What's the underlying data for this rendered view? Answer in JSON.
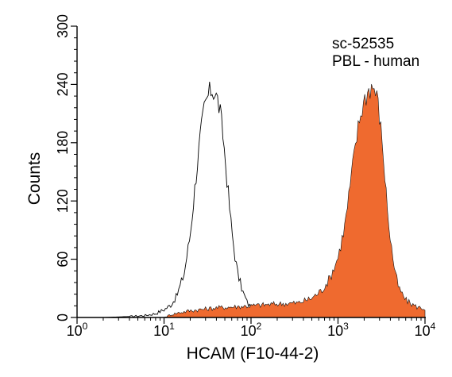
{
  "chart_data": {
    "type": "area",
    "xlabel": "HCAM (F10-44-2)",
    "ylabel": "Counts",
    "x_scale": "log",
    "xlim": [
      1,
      10000
    ],
    "ylim": [
      0,
      300
    ],
    "x_ticks": [
      {
        "base": "10",
        "exp": "0",
        "value": 1
      },
      {
        "base": "10",
        "exp": "1",
        "value": 10
      },
      {
        "base": "10",
        "exp": "2",
        "value": 100
      },
      {
        "base": "10",
        "exp": "3",
        "value": 1000
      },
      {
        "base": "10",
        "exp": "4",
        "value": 10000
      }
    ],
    "y_ticks": [
      "0",
      "60",
      "120",
      "180",
      "240",
      "300"
    ],
    "annotations": [
      "sc-52535",
      "PBL - human"
    ],
    "series": [
      {
        "style": "outline",
        "color": "#000000",
        "x": [
          1,
          2,
          4,
          6,
          8,
          10,
          12,
          14,
          17,
          20,
          23,
          26,
          29,
          32,
          35,
          38,
          41,
          44,
          48,
          52,
          56,
          60,
          65,
          70,
          80,
          90,
          100,
          120,
          150,
          200,
          300,
          500,
          800,
          1200,
          2000,
          4000,
          10000
        ],
        "y": [
          0,
          0,
          1,
          2,
          4,
          8,
          13,
          22,
          45,
          85,
          140,
          185,
          215,
          228,
          235,
          232,
          225,
          212,
          185,
          150,
          118,
          90,
          65,
          46,
          27,
          16,
          10,
          7,
          5,
          4,
          3,
          3,
          3,
          3,
          3,
          2,
          0
        ]
      },
      {
        "style": "filled",
        "color": "#ef6a2f",
        "x": [
          1,
          10,
          12,
          15,
          20,
          40,
          100,
          200,
          350,
          500,
          650,
          800,
          1000,
          1200,
          1400,
          1600,
          1800,
          2000,
          2200,
          2400,
          2600,
          2800,
          3000,
          3300,
          3600,
          4000,
          4500,
          5000,
          6000,
          7000,
          8000,
          10000
        ],
        "y": [
          0,
          0,
          3,
          5,
          7,
          10,
          12,
          14,
          15,
          20,
          28,
          40,
          62,
          95,
          140,
          180,
          208,
          224,
          233,
          238,
          236,
          228,
          208,
          170,
          125,
          80,
          48,
          30,
          18,
          14,
          11,
          9
        ]
      }
    ]
  }
}
